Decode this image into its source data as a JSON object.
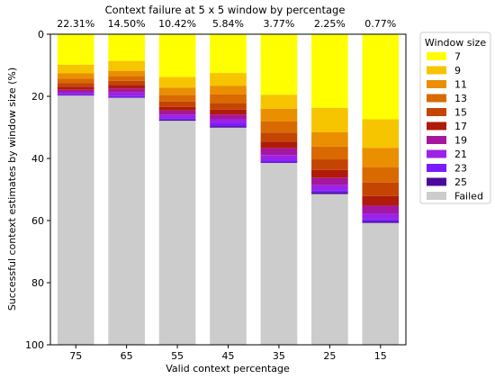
{
  "chart_data": {
    "type": "bar",
    "stacked": true,
    "title": "Context failure at 5 x 5 window by percentage",
    "xlabel": "Valid context percentage",
    "ylabel": "Successful context estimates by window size (%)",
    "ylim": [
      0,
      100
    ],
    "y_inverted": true,
    "yticks": [
      0,
      20,
      40,
      60,
      80,
      100
    ],
    "grid": false,
    "categories": [
      "75",
      "65",
      "55",
      "45",
      "35",
      "25",
      "15"
    ],
    "top_labels": [
      "22.31%",
      "14.50%",
      "10.42%",
      "5.84%",
      "3.77%",
      "2.25%",
      "0.77%"
    ],
    "legend": {
      "title": "Window size",
      "position": "outside-right-top"
    },
    "series": [
      {
        "name": "7",
        "color": "#ffff00",
        "values": [
          9.8,
          8.6,
          13.8,
          12.5,
          19.5,
          23.7,
          27.4
        ]
      },
      {
        "name": "9",
        "color": "#f7c400",
        "values": [
          2.8,
          3.2,
          3.4,
          4.1,
          4.5,
          7.9,
          9.2
        ]
      },
      {
        "name": "11",
        "color": "#ea8f00",
        "values": [
          1.7,
          1.7,
          2.4,
          2.8,
          4.1,
          4.6,
          6.2
        ]
      },
      {
        "name": "13",
        "color": "#d96a00",
        "values": [
          1.4,
          1.5,
          2.1,
          2.8,
          3.6,
          4.1,
          5.0
        ]
      },
      {
        "name": "15",
        "color": "#c44500",
        "values": [
          1.2,
          1.3,
          1.7,
          2.1,
          2.9,
          3.4,
          4.3
        ]
      },
      {
        "name": "17",
        "color": "#b01a0a",
        "values": [
          1.0,
          1.3,
          1.2,
          1.6,
          2.1,
          2.6,
          3.1
        ]
      },
      {
        "name": "19",
        "color": "#a5179e",
        "values": [
          0.8,
          1.2,
          1.4,
          1.5,
          2.2,
          2.3,
          2.5
        ]
      },
      {
        "name": "21",
        "color": "#9c22e8",
        "values": [
          0.6,
          1.1,
          1.0,
          1.3,
          1.7,
          1.6,
          1.9
        ]
      },
      {
        "name": "23",
        "color": "#7a1aff",
        "values": [
          0.3,
          0.4,
          0.5,
          0.9,
          0.6,
          0.7,
          0.7
        ]
      },
      {
        "name": "25",
        "color": "#4b0a9c",
        "values": [
          0.2,
          0.2,
          0.4,
          0.5,
          0.3,
          0.6,
          0.5
        ]
      },
      {
        "name": "Failed",
        "color": "#cccccc",
        "values": [
          80.2,
          79.5,
          72.1,
          69.9,
          58.5,
          48.5,
          39.2
        ]
      }
    ]
  }
}
